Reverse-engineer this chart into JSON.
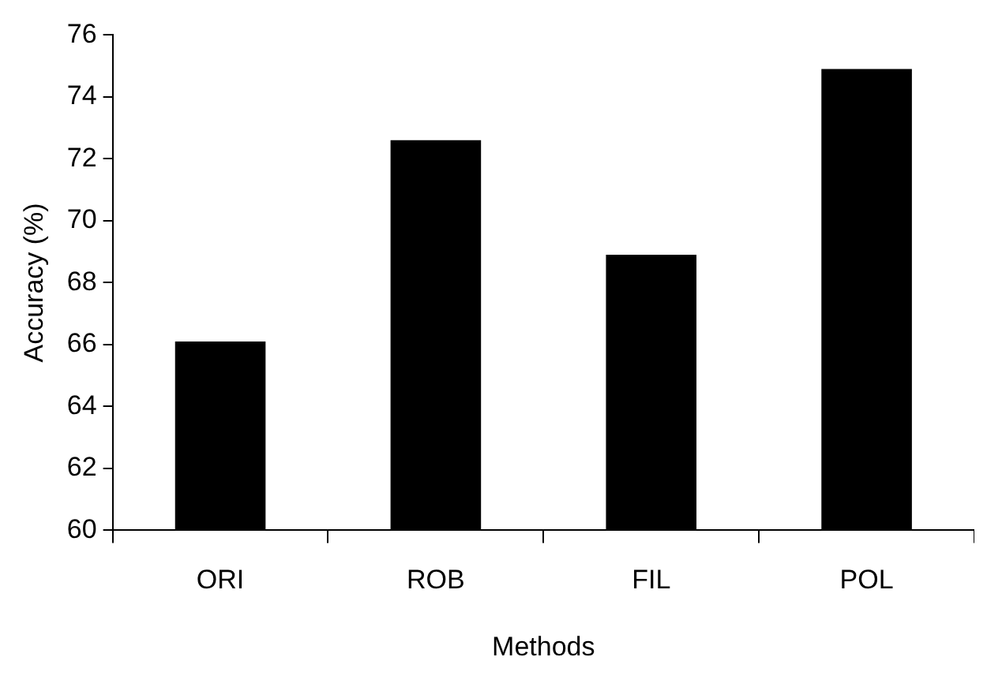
{
  "chart_data": {
    "type": "bar",
    "xlabel": "Methods",
    "ylabel": "Accuracy (%)",
    "categories": [
      "ORI",
      "ROB",
      "FIL",
      "POL"
    ],
    "values": [
      66.1,
      72.6,
      68.9,
      74.9
    ],
    "color": "#000000",
    "ylim": [
      60,
      76
    ],
    "yticks": [
      60,
      62,
      64,
      66,
      68,
      70,
      72,
      74,
      76
    ],
    "grid": false,
    "legend": false
  }
}
